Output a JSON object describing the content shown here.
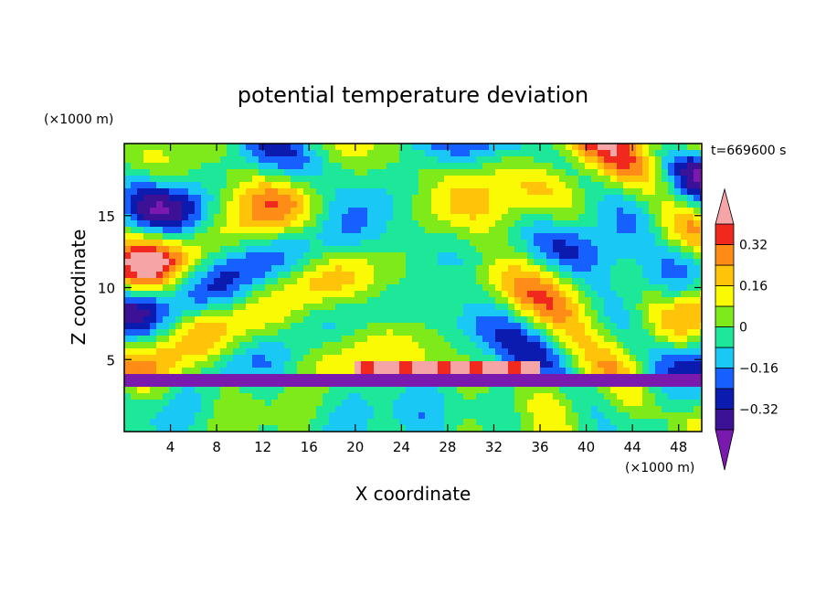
{
  "chart_data": {
    "type": "heatmap",
    "title": "potential temperature deviation",
    "xlabel": "X coordinate",
    "ylabel": "Z coordinate",
    "x_unit": "(×1000 m)",
    "y_unit": "(×1000 m)",
    "time_label": "t=669600 s",
    "xlim": [
      0,
      50
    ],
    "ylim": [
      0,
      20
    ],
    "x_ticks": [
      4,
      8,
      12,
      16,
      20,
      24,
      28,
      32,
      36,
      40,
      44,
      48
    ],
    "y_ticks": [
      5,
      10,
      15
    ],
    "colorbar": {
      "levels": [
        -0.4,
        -0.32,
        -0.24,
        -0.16,
        -0.08,
        0,
        0.08,
        0.16,
        0.24,
        0.32,
        0.4
      ],
      "tick_labels": [
        "0.32",
        "0.16",
        "0",
        "−0.16",
        "−0.32"
      ],
      "tick_values": [
        0.32,
        0.16,
        0,
        -0.16,
        -0.32
      ],
      "colors": [
        "#7a19ae",
        "#3c1196",
        "#0b1bb0",
        "#1560ff",
        "#19c8f5",
        "#1de89a",
        "#7fea1a",
        "#fafa05",
        "#ffc40a",
        "#ff8c16",
        "#f0281e",
        "#f5a5a5"
      ]
    }
  }
}
